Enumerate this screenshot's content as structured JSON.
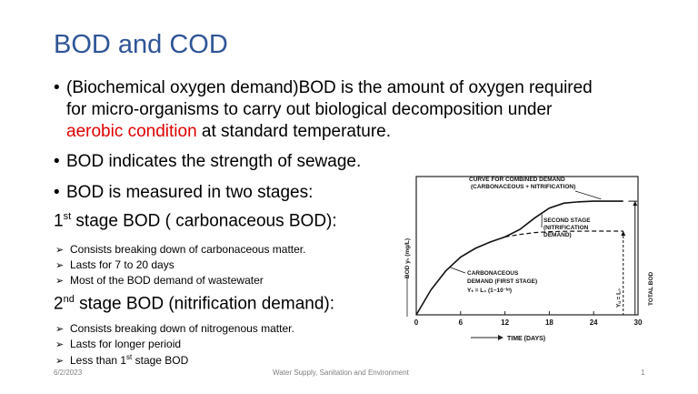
{
  "slide": {
    "title": "BOD and COD",
    "bullet1": {
      "line1": "(Biochemical oxygen demand)BOD is the amount of oxygen required",
      "line2": "for micro-organisms to carry out biological decomposition under",
      "line3_red": "aerobic condition",
      "line3_rest": " at standard temperature."
    },
    "bullet2": "BOD indicates the strength of sewage.",
    "bullet3": "BOD is measured in two stages:",
    "stage1": {
      "pre": "1",
      "sup": "st",
      "post": " stage BOD ( carbonaceous BOD):"
    },
    "stage1_items": [
      "Consists breaking down of carbonaceous matter.",
      "Lasts for 7 to 20 days",
      "Most of the BOD demand of wastewater"
    ],
    "stage2": {
      "pre": "2",
      "sup": "nd",
      "post": " stage BOD (nitrification demand):"
    },
    "stage2_items": [
      "Consists breaking down of nitrogenous matter.",
      "Lasts for longer perioid",
      {
        "pre": "Less than 1",
        "sup": "st",
        "post": " stage BOD"
      }
    ],
    "footer": {
      "date": "6/2/2023",
      "course": "Water Supply, Sanitation and Environment",
      "page": "1"
    }
  },
  "chart_data": {
    "type": "line",
    "xlabel": "TIME (DAYS)",
    "ylabel": "BOD  yₜ (mg/L)",
    "xticks": [
      "0",
      "6",
      "12",
      "18",
      "24",
      "30"
    ],
    "xlim": [
      0,
      30
    ],
    "grid": false,
    "series": [
      {
        "name": "CURVE FOR COMBINED DEMAND (CARBONACEOUS + NITRIFICATION)",
        "points": [
          [
            0,
            0
          ],
          [
            2,
            0.2
          ],
          [
            4,
            0.35
          ],
          [
            6,
            0.46
          ],
          [
            8,
            0.53
          ],
          [
            10,
            0.58
          ],
          [
            12,
            0.62
          ],
          [
            14,
            0.68
          ],
          [
            16,
            0.77
          ],
          [
            18,
            0.85
          ],
          [
            20,
            0.89
          ],
          [
            22,
            0.9
          ],
          [
            24,
            0.905
          ],
          [
            26,
            0.905
          ],
          [
            28,
            0.905
          ]
        ]
      },
      {
        "name": "CARBONACEOUS DEMAND (FIRST STAGE)",
        "points": [
          [
            12,
            0.62
          ],
          [
            14,
            0.64
          ],
          [
            16,
            0.655
          ],
          [
            18,
            0.662
          ],
          [
            20,
            0.665
          ],
          [
            24,
            0.667
          ],
          [
            28,
            0.667
          ]
        ]
      }
    ],
    "annotations": [
      {
        "line1": "CURVE FOR COMBINED DEMAND",
        "line2": "(CARBONACEOUS + NITRIFICATION)"
      },
      {
        "line1": "SECOND STAGE",
        "line2": "(NITRIFICATION",
        "line3": "DEMAND)"
      },
      {
        "line1": "CARBONACEOUS",
        "line2": "DEMAND (FIRST   STAGE)",
        "line3": "Yₜ = L₀ (1−10⁻ᵏᵗ)"
      },
      {
        "label": "Yᵤ = L₀"
      },
      {
        "label": "TOTAL  BOD"
      }
    ]
  }
}
